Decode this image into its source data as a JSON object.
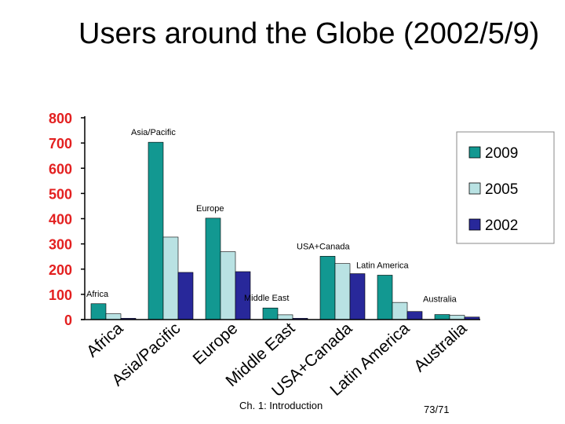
{
  "slide": {
    "title": "Users around the Globe (2002/5/9)",
    "footer_left": "Ch. 1: Introduction",
    "footer_right": "73/71"
  },
  "colors": {
    "series_2009": "#129891",
    "series_2005": "#b9e2e3",
    "series_2002": "#28289a",
    "tick_text": "#e32020",
    "axis": "#000000"
  },
  "chart_data": {
    "type": "bar",
    "title": "Users around the Globe (2002/5/9)",
    "categories": [
      "Africa",
      "Asia/Pacific",
      "Europe",
      "Middle East",
      "USA+Canada",
      "Latin America",
      "Australia"
    ],
    "series": [
      {
        "name": "2009",
        "values": [
          63,
          703,
          402,
          46,
          251,
          176,
          20
        ]
      },
      {
        "name": "2005",
        "values": [
          23,
          327,
          269,
          19,
          222,
          68,
          17
        ]
      },
      {
        "name": "2002",
        "values": [
          5,
          187,
          190,
          5,
          182,
          32,
          10
        ]
      }
    ],
    "region_labels": [
      "Africa",
      "Asia/Pacific",
      "Europe",
      "Middle East",
      "USA+Canada",
      "Latin America",
      "Australia"
    ],
    "yticks": [
      0,
      100,
      200,
      300,
      400,
      500,
      600,
      700,
      800
    ],
    "ylim": [
      0,
      800
    ],
    "xlabel": "",
    "ylabel": "",
    "legend": {
      "position": "right",
      "entries": [
        "2009",
        "2005",
        "2002"
      ]
    }
  }
}
